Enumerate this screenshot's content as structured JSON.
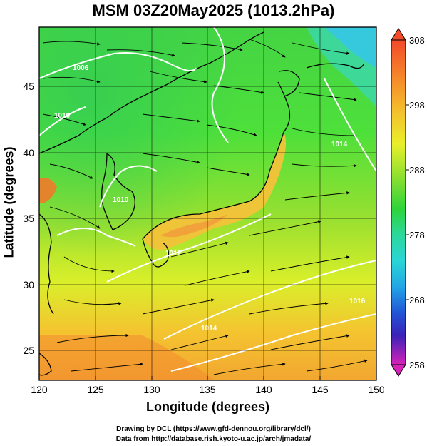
{
  "title": "MSM 03Z20May2025 (1013.2hPa)",
  "xaxis": {
    "label": "Longitude (degrees)",
    "ticks": [
      "120",
      "125",
      "130",
      "135",
      "140",
      "145",
      "150"
    ],
    "range": [
      120,
      150
    ]
  },
  "yaxis": {
    "label": "Latitude  (degrees)",
    "ticks": [
      "25",
      "30",
      "35",
      "40",
      "45"
    ],
    "range": [
      22.4,
      47.6
    ]
  },
  "colorbar": {
    "ticks": [
      "308",
      "298",
      "288",
      "278",
      "268",
      "258"
    ],
    "range": [
      258,
      308
    ]
  },
  "contour_labels": [
    "1006",
    "1010",
    "1010",
    "1012",
    "1014",
    "1014",
    "1016"
  ],
  "credits": {
    "line1": "Drawing by DCL (https://www.gfd-dennou.org/library/dcl/)",
    "line2": "Data from http://database.rish.kyoto-u.ac.jp/arch/jmadata/"
  }
}
